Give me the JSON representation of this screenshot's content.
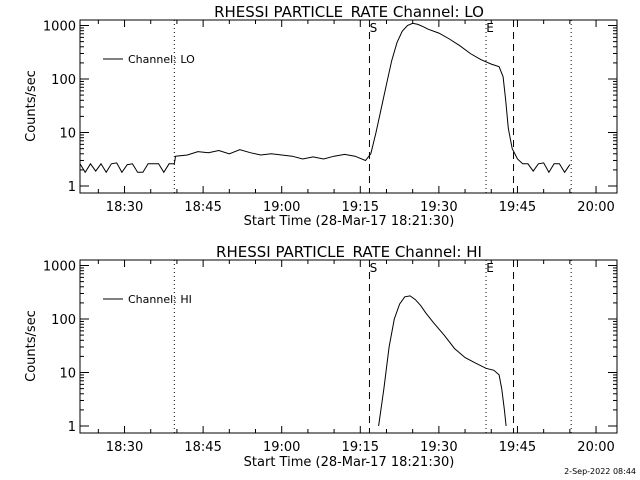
{
  "footer_timestamp": "2-Sep-2022 08:44",
  "chart_data": [
    {
      "type": "line",
      "title": "RHESSI PARTICLE_RATE Channel: LO",
      "xlabel": "Start Time (28-Mar-17 18:21:30)",
      "ylabel": "Counts/sec",
      "y_scale": "log",
      "ylim": [
        1,
        1000
      ],
      "xlim": [
        "18:21:30",
        "20:04:00"
      ],
      "x_ticks": [
        "18:30",
        "18:45",
        "19:00",
        "19:15",
        "19:30",
        "19:45",
        "20:00"
      ],
      "y_ticks": [
        "1",
        "10",
        "100",
        "1000"
      ],
      "legend": {
        "position": "top-left",
        "entries": [
          "Channel: LO"
        ]
      },
      "markers": [
        {
          "label": "",
          "time": "18:39:30",
          "style": "dotted"
        },
        {
          "label": "S",
          "time": "19:16:45",
          "style": "dashed"
        },
        {
          "label": "E",
          "time": "19:39:00",
          "style": "dotted"
        },
        {
          "label": "",
          "time": "19:44:15",
          "style": "dashed"
        },
        {
          "label": "",
          "time": "19:55:15",
          "style": "dotted"
        }
      ],
      "series": [
        {
          "name": "Channel: LO",
          "points": [
            [
              "18:21:30",
              2.6
            ],
            [
              "18:22:30",
              1.8
            ],
            [
              "18:23:30",
              2.6
            ],
            [
              "18:24:30",
              1.9
            ],
            [
              "18:25:30",
              2.6
            ],
            [
              "18:26:30",
              1.8
            ],
            [
              "18:27:30",
              2.6
            ],
            [
              "18:28:30",
              2.7
            ],
            [
              "18:29:30",
              1.8
            ],
            [
              "18:30:30",
              2.5
            ],
            [
              "18:31:30",
              2.6
            ],
            [
              "18:32:30",
              1.8
            ],
            [
              "18:33:30",
              1.8
            ],
            [
              "18:34:30",
              2.6
            ],
            [
              "18:35:30",
              2.6
            ],
            [
              "18:36:30",
              2.6
            ],
            [
              "18:37:30",
              1.8
            ],
            [
              "18:38:30",
              2.6
            ],
            [
              "18:39:30",
              2.6
            ],
            [
              "18:39:45",
              3.6
            ],
            [
              "18:42:00",
              3.8
            ],
            [
              "18:44:00",
              4.4
            ],
            [
              "18:46:00",
              4.2
            ],
            [
              "18:48:00",
              4.6
            ],
            [
              "18:50:00",
              4.0
            ],
            [
              "18:52:00",
              4.8
            ],
            [
              "18:54:00",
              4.2
            ],
            [
              "18:56:00",
              3.8
            ],
            [
              "18:58:00",
              4.0
            ],
            [
              "19:00:00",
              3.8
            ],
            [
              "19:02:00",
              3.6
            ],
            [
              "19:04:00",
              3.2
            ],
            [
              "19:06:00",
              3.5
            ],
            [
              "19:08:00",
              3.2
            ],
            [
              "19:10:00",
              3.6
            ],
            [
              "19:12:00",
              3.9
            ],
            [
              "19:14:00",
              3.6
            ],
            [
              "19:16:00",
              3.0
            ],
            [
              "19:17:00",
              4.0
            ],
            [
              "19:18:00",
              10
            ],
            [
              "19:19:00",
              28
            ],
            [
              "19:20:00",
              80
            ],
            [
              "19:21:00",
              220
            ],
            [
              "19:22:00",
              480
            ],
            [
              "19:23:00",
              780
            ],
            [
              "19:24:00",
              1000
            ],
            [
              "19:25:00",
              1100
            ],
            [
              "19:26:00",
              1050
            ],
            [
              "19:27:00",
              950
            ],
            [
              "19:28:00",
              850
            ],
            [
              "19:30:00",
              720
            ],
            [
              "19:32:00",
              560
            ],
            [
              "19:34:00",
              420
            ],
            [
              "19:36:00",
              300
            ],
            [
              "19:38:00",
              230
            ],
            [
              "19:40:00",
              190
            ],
            [
              "19:41:30",
              170
            ],
            [
              "19:42:15",
              110
            ],
            [
              "19:42:45",
              40
            ],
            [
              "19:43:15",
              12
            ],
            [
              "19:44:00",
              5
            ],
            [
              "19:45:00",
              3.2
            ],
            [
              "19:46:00",
              2.6
            ],
            [
              "19:47:00",
              2.6
            ],
            [
              "19:48:00",
              1.9
            ],
            [
              "19:49:00",
              2.6
            ],
            [
              "19:50:00",
              2.7
            ],
            [
              "19:51:00",
              1.8
            ],
            [
              "19:52:00",
              2.6
            ],
            [
              "19:53:00",
              2.6
            ],
            [
              "19:54:00",
              1.8
            ],
            [
              "19:55:00",
              2.5
            ]
          ]
        }
      ]
    },
    {
      "type": "line",
      "title": "RHESSI PARTICLE_RATE Channel: HI",
      "xlabel": "Start Time (28-Mar-17 18:21:30)",
      "ylabel": "Counts/sec",
      "y_scale": "log",
      "ylim": [
        1,
        1000
      ],
      "xlim": [
        "18:21:30",
        "20:04:00"
      ],
      "x_ticks": [
        "18:30",
        "18:45",
        "19:00",
        "19:15",
        "19:30",
        "19:45",
        "20:00"
      ],
      "y_ticks": [
        "1",
        "10",
        "100",
        "1000"
      ],
      "legend": {
        "position": "top-left",
        "entries": [
          "Channel: HI"
        ]
      },
      "markers": [
        {
          "label": "",
          "time": "18:39:30",
          "style": "dotted"
        },
        {
          "label": "S",
          "time": "19:16:45",
          "style": "dashed"
        },
        {
          "label": "E",
          "time": "19:39:00",
          "style": "dotted"
        },
        {
          "label": "",
          "time": "19:44:15",
          "style": "dashed"
        },
        {
          "label": "",
          "time": "19:55:15",
          "style": "dotted"
        }
      ],
      "series": [
        {
          "name": "Channel: HI",
          "points": [
            [
              "19:18:30",
              1.0
            ],
            [
              "19:19:30",
              5
            ],
            [
              "19:20:30",
              30
            ],
            [
              "19:21:30",
              100
            ],
            [
              "19:22:30",
              190
            ],
            [
              "19:23:30",
              260
            ],
            [
              "19:24:30",
              270
            ],
            [
              "19:25:30",
              230
            ],
            [
              "19:26:30",
              180
            ],
            [
              "19:27:30",
              130
            ],
            [
              "19:29:00",
              85
            ],
            [
              "19:31:00",
              50
            ],
            [
              "19:33:00",
              28
            ],
            [
              "19:35:00",
              19
            ],
            [
              "19:37:00",
              15
            ],
            [
              "19:39:00",
              12
            ],
            [
              "19:40:30",
              11
            ],
            [
              "19:41:30",
              9
            ],
            [
              "19:42:00",
              5
            ],
            [
              "19:42:30",
              2
            ],
            [
              "19:42:50",
              1.0
            ]
          ]
        }
      ]
    }
  ]
}
